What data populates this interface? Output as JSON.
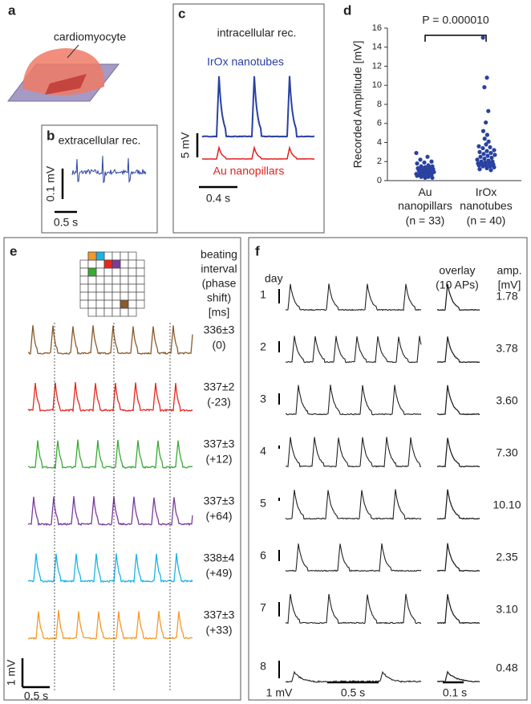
{
  "panels": {
    "a": {
      "label": "a",
      "annotation": "cardiomyocyte"
    },
    "b": {
      "label": "b",
      "title": "extracellular rec.",
      "scale_y": "0.1 mV",
      "scale_x": "0.5 s"
    },
    "c": {
      "label": "c",
      "title": "intracellular rec.",
      "traces": [
        {
          "name": "IrOx nanotubes",
          "color": "#2941a0"
        },
        {
          "name": "Au nanopillars",
          "color": "#e02020"
        }
      ],
      "scale_y": "5 mV",
      "scale_x": "0.4 s"
    },
    "d": {
      "label": "d"
    },
    "e": {
      "label": "e",
      "header": [
        "beating",
        "interval",
        "(phase",
        "shift)",
        "[ms]"
      ],
      "rows": [
        {
          "interval": "336±3",
          "shift": "(0)",
          "color": "#8b5a2b"
        },
        {
          "interval": "337±2",
          "shift": "(-23)",
          "color": "#e8261e"
        },
        {
          "interval": "337±3",
          "shift": "(+12)",
          "color": "#3aa935"
        },
        {
          "interval": "337±3",
          "shift": "(+64)",
          "color": "#7b3b9a"
        },
        {
          "interval": "338±4",
          "shift": "(+49)",
          "color": "#1bb3e6"
        },
        {
          "interval": "337±3",
          "shift": "(+33)",
          "color": "#f39a2b"
        }
      ],
      "scale_y": "1 mV",
      "scale_x": "0.5 s"
    },
    "f": {
      "label": "f",
      "day_header": "day",
      "overlay_header": [
        "overlay",
        "(10 APs)"
      ],
      "amp_header": [
        "amp.",
        "[mV]"
      ],
      "rows": [
        {
          "day": 1,
          "amp": "1.78"
        },
        {
          "day": 2,
          "amp": "3.78"
        },
        {
          "day": 3,
          "amp": "3.60"
        },
        {
          "day": 4,
          "amp": "7.30"
        },
        {
          "day": 5,
          "amp": "10.10"
        },
        {
          "day": 6,
          "amp": "2.35"
        },
        {
          "day": 7,
          "amp": "3.10"
        },
        {
          "day": 8,
          "amp": "0.48"
        }
      ],
      "scale_y": "1 mV",
      "scale_x": "0.5 s",
      "overlay_scale_x": "0.1 s"
    }
  },
  "chart_data": {
    "type": "scatter",
    "ylabel": "Recorded Amplitude [mV]",
    "annotation": "P = 0.000010",
    "categories": [
      "Au nanopillars",
      "IrOx nanotubes"
    ],
    "category_notes": [
      "(n = 33)",
      "(n = 40)"
    ],
    "color": "#2941a0",
    "values": [
      [
        2.9,
        2.5,
        2.2,
        2.0,
        1.9,
        1.8,
        1.6,
        1.5,
        1.5,
        1.4,
        1.3,
        1.3,
        1.2,
        1.2,
        1.1,
        1.1,
        1.0,
        1.0,
        0.9,
        0.9,
        0.8,
        0.8,
        0.8,
        0.7,
        0.7,
        0.6,
        0.6,
        0.5,
        0.5,
        0.4,
        0.4,
        0.3,
        0.3
      ],
      [
        15.0,
        10.8,
        9.8,
        7.3,
        6.1,
        5.2,
        4.8,
        4.4,
        4.1,
        3.8,
        3.6,
        3.5,
        3.4,
        3.2,
        3.1,
        3.0,
        2.9,
        2.8,
        2.7,
        2.6,
        2.5,
        2.4,
        2.3,
        2.2,
        2.1,
        2.0,
        2.0,
        1.9,
        1.8,
        1.8,
        1.7,
        1.7,
        1.6,
        1.6,
        1.5,
        1.5,
        1.4,
        1.3,
        1.2,
        1.1
      ]
    ],
    "ylim": [
      0,
      16
    ],
    "yticks": [
      0,
      2,
      4,
      6,
      8,
      10,
      12,
      14,
      16
    ]
  }
}
